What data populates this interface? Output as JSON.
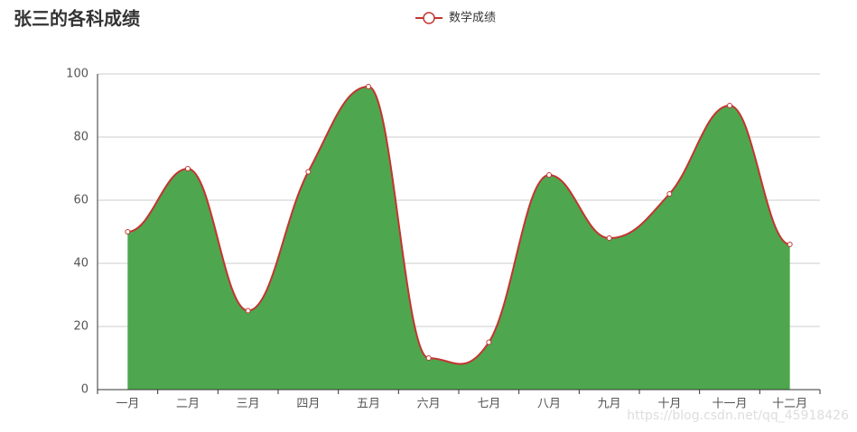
{
  "chart_data": {
    "type": "line",
    "title": "张三的各科成绩",
    "categories": [
      "一月",
      "二月",
      "三月",
      "四月",
      "五月",
      "六月",
      "七月",
      "八月",
      "九月",
      "十月",
      "十一月",
      "十二月"
    ],
    "series": [
      {
        "name": "数学成绩",
        "color": "#c23531",
        "area_color": "#4aa54a",
        "smooth": true,
        "values": [
          50,
          70,
          25,
          69,
          96,
          10,
          15,
          68,
          48,
          62,
          90,
          46
        ]
      }
    ],
    "ylim": [
      0,
      100
    ],
    "yticks": [
      0,
      20,
      40,
      60,
      80,
      100
    ],
    "grid": true,
    "legend": "top",
    "watermark": "https://blog.csdn.net/qq_45918426"
  }
}
